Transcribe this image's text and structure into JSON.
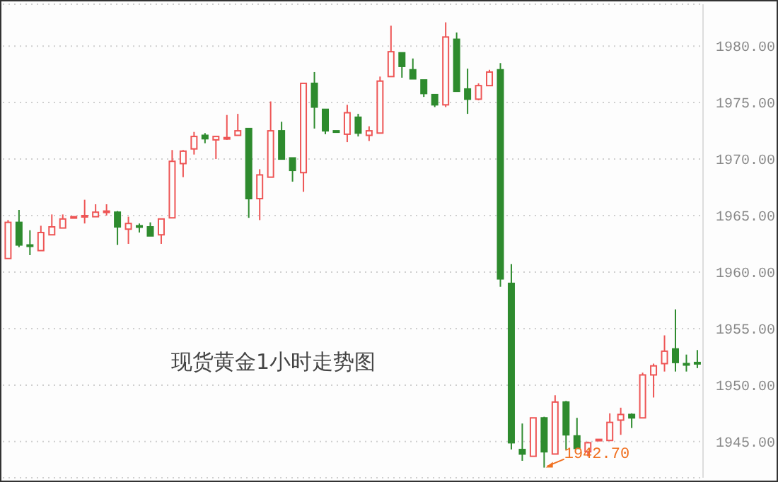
{
  "chart_data": {
    "type": "candlestick",
    "title": "现货黄金1小时走势图",
    "categories": [
      null,
      null,
      null,
      null,
      null,
      null,
      null,
      null,
      null,
      null,
      null,
      null,
      null,
      null,
      null,
      null,
      null,
      null,
      null,
      null,
      null,
      null,
      null,
      null,
      null,
      null,
      null,
      null,
      null,
      null,
      null,
      null,
      null,
      null,
      null,
      null,
      null,
      null,
      null,
      null,
      null,
      null,
      null,
      null,
      null,
      null,
      null,
      null,
      null,
      null,
      null,
      null,
      null,
      null,
      null,
      null,
      null,
      null,
      null,
      null,
      null,
      null,
      null,
      null
    ],
    "ohlc": [
      [
        1961.2,
        1964.6,
        1961.2,
        1964.4
      ],
      [
        1964.4,
        1965.5,
        1962.2,
        1962.4
      ],
      [
        1962.4,
        1963.7,
        1961.5,
        1962.3
      ],
      [
        1961.9,
        1964.1,
        1961.9,
        1963.5
      ],
      [
        1963.3,
        1965.1,
        1963.3,
        1964.0
      ],
      [
        1963.9,
        1965.1,
        1963.9,
        1964.7
      ],
      [
        1964.8,
        1964.9,
        1964.8,
        1964.9
      ],
      [
        1964.9,
        1966.4,
        1964.3,
        1965.0
      ],
      [
        1964.9,
        1966.0,
        1964.9,
        1965.3
      ],
      [
        1965.3,
        1966.0,
        1965.0,
        1965.4
      ],
      [
        1965.3,
        1965.4,
        1962.4,
        1964.0
      ],
      [
        1963.8,
        1964.9,
        1962.5,
        1964.3
      ],
      [
        1964.1,
        1964.3,
        1963.5,
        1964.0
      ],
      [
        1964.0,
        1964.4,
        1963.2,
        1963.2
      ],
      [
        1963.3,
        1964.7,
        1962.5,
        1964.7
      ],
      [
        1964.8,
        1970.8,
        1964.8,
        1969.8
      ],
      [
        1969.6,
        1970.8,
        1968.4,
        1970.7
      ],
      [
        1970.9,
        1972.4,
        1970.4,
        1972.0
      ],
      [
        1972.1,
        1972.3,
        1971.4,
        1971.8
      ],
      [
        1971.7,
        1972.0,
        1970.0,
        1972.0
      ],
      [
        1971.8,
        1973.9,
        1971.7,
        1971.9
      ],
      [
        1972.1,
        1974.0,
        1972.1,
        1972.5
      ],
      [
        1972.7,
        1972.7,
        1964.8,
        1966.5
      ],
      [
        1966.5,
        1969.1,
        1964.6,
        1968.6
      ],
      [
        1968.4,
        1975.1,
        1968.4,
        1972.5
      ],
      [
        1972.5,
        1973.3,
        1970.0,
        1970.0
      ],
      [
        1970.1,
        1970.1,
        1968.0,
        1969.0
      ],
      [
        1968.8,
        1976.7,
        1967.1,
        1976.7
      ],
      [
        1976.7,
        1977.7,
        1972.7,
        1974.6
      ],
      [
        1974.4,
        1974.4,
        1972.2,
        1972.5
      ],
      [
        1972.5,
        1972.5,
        1972.4,
        1972.4
      ],
      [
        1972.2,
        1974.8,
        1971.5,
        1974.1
      ],
      [
        1973.7,
        1974.0,
        1972.0,
        1972.3
      ],
      [
        1972.1,
        1972.9,
        1971.6,
        1972.5
      ],
      [
        1972.3,
        1977.3,
        1972.3,
        1976.9
      ],
      [
        1977.3,
        1981.8,
        1977.3,
        1979.5
      ],
      [
        1979.4,
        1979.4,
        1977.2,
        1978.2
      ],
      [
        1977.9,
        1978.9,
        1977.1,
        1977.1
      ],
      [
        1977.0,
        1977.0,
        1975.5,
        1975.8
      ],
      [
        1975.7,
        1975.7,
        1974.6,
        1974.8
      ],
      [
        1974.8,
        1982.1,
        1974.6,
        1980.8
      ],
      [
        1980.6,
        1981.2,
        1976.0,
        1976.0
      ],
      [
        1976.2,
        1978.0,
        1974.0,
        1975.3
      ],
      [
        1975.3,
        1976.7,
        1975.2,
        1976.5
      ],
      [
        1976.5,
        1977.9,
        1976.5,
        1977.7
      ],
      [
        1977.9,
        1978.5,
        1958.7,
        1959.4
      ],
      [
        1959.0,
        1960.7,
        1944.3,
        1944.9
      ],
      [
        1944.3,
        1946.6,
        1943.3,
        1943.9
      ],
      [
        1943.7,
        1947.1,
        1943.7,
        1947.1
      ],
      [
        1947.1,
        1947.2,
        1942.7,
        1944.1
      ],
      [
        1943.9,
        1949.1,
        1943.9,
        1948.5
      ],
      [
        1948.5,
        1948.6,
        1944.3,
        1945.6
      ],
      [
        1945.5,
        1947.1,
        1944.4,
        1944.4
      ],
      [
        1944.1,
        1945.0,
        1943.7,
        1944.9
      ],
      [
        1945.1,
        1945.2,
        1945.1,
        1945.2
      ],
      [
        1945.1,
        1947.5,
        1945.1,
        1946.7
      ],
      [
        1946.9,
        1948.0,
        1945.6,
        1947.4
      ],
      [
        1947.4,
        1947.5,
        1946.2,
        1947.1
      ],
      [
        1947.1,
        1951.1,
        1947.1,
        1950.9
      ],
      [
        1950.9,
        1951.9,
        1948.9,
        1951.7
      ],
      [
        1951.9,
        1954.4,
        1951.2,
        1953.0
      ],
      [
        1953.2,
        1956.7,
        1951.2,
        1952.0
      ],
      [
        1951.9,
        1952.7,
        1951.2,
        1951.8
      ],
      [
        1952.0,
        1953.1,
        1951.5,
        1951.9
      ]
    ],
    "colors": [
      "#ee5555",
      "#2e8b2e",
      "#2e8b2e",
      "#ee5555",
      "#ee5555",
      "#ee5555",
      "#ee5555",
      "#ee5555",
      "#ee5555",
      "#ee5555",
      "#2e8b2e",
      "#ee5555",
      "#2e8b2e",
      "#2e8b2e",
      "#ee5555",
      "#ee5555",
      "#ee5555",
      "#ee5555",
      "#2e8b2e",
      "#ee5555",
      "#ee5555",
      "#ee5555",
      "#2e8b2e",
      "#ee5555",
      "#ee5555",
      "#2e8b2e",
      "#2e8b2e",
      "#ee5555",
      "#2e8b2e",
      "#2e8b2e",
      "#2e8b2e",
      "#ee5555",
      "#2e8b2e",
      "#ee5555",
      "#ee5555",
      "#ee5555",
      "#2e8b2e",
      "#2e8b2e",
      "#2e8b2e",
      "#2e8b2e",
      "#ee5555",
      "#2e8b2e",
      "#2e8b2e",
      "#ee5555",
      "#ee5555",
      "#2e8b2e",
      "#2e8b2e",
      "#2e8b2e",
      "#ee5555",
      "#2e8b2e",
      "#ee5555",
      "#2e8b2e",
      "#2e8b2e",
      "#ee5555",
      "#ee5555",
      "#ee5555",
      "#ee5555",
      "#2e8b2e",
      "#ee5555",
      "#ee5555",
      "#ee5555",
      "#2e8b2e",
      "#2e8b2e",
      "#2e8b2e"
    ],
    "ylim": [
      1941.8,
      1983.7
    ],
    "yticks": [
      {
        "value": 1945,
        "label": "1945.00"
      },
      {
        "value": 1950,
        "label": "1950.00"
      },
      {
        "value": 1955,
        "label": "1955.00"
      },
      {
        "value": 1960,
        "label": "1960.00"
      },
      {
        "value": 1965,
        "label": "1965.00"
      },
      {
        "value": 1970,
        "label": "1970.00"
      },
      {
        "value": 1975,
        "label": "1975.00"
      },
      {
        "value": 1980,
        "label": "1980.00"
      }
    ],
    "grid": "y",
    "annotations": [
      "1942.70"
    ]
  }
}
